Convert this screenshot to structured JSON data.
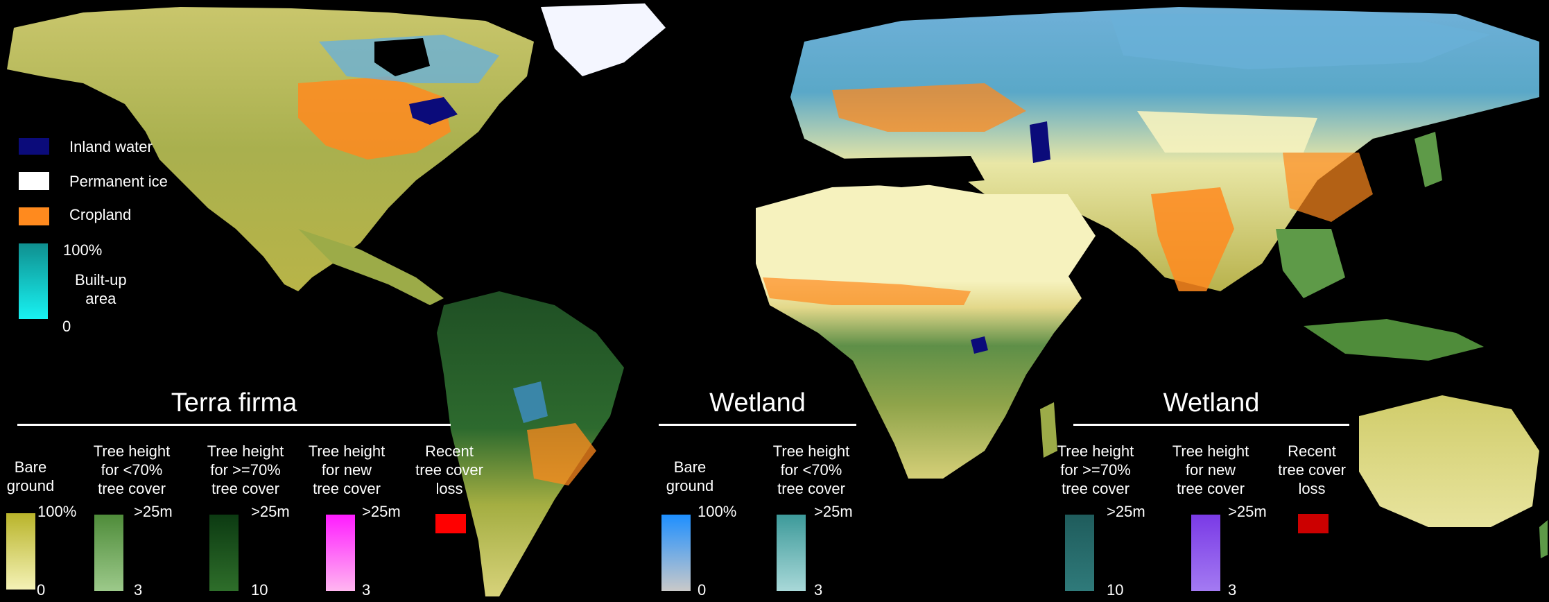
{
  "legend_top": {
    "inland_water": {
      "label": "Inland water",
      "color": "#0b0b7a"
    },
    "permanent_ice": {
      "label": "Permanent ice",
      "color": "#ffffff"
    },
    "cropland": {
      "label": "Cropland",
      "color": "#ff8a1e"
    },
    "built_up": {
      "label": "Built-up\narea",
      "max": "100%",
      "min": "0",
      "color_top": "#0f8f8f",
      "color_bottom": "#18f2f2"
    }
  },
  "terra_firma": {
    "title": "Terra firma",
    "columns": [
      {
        "head": "Bare\nground",
        "max": "100%",
        "min": "0",
        "top": "#b9b42a",
        "bottom": "#f4f2b6"
      },
      {
        "head": "Tree height\nfor <70%\ntree cover",
        "max": ">25m",
        "min": "3",
        "top": "#4f8c3a",
        "bottom": "#9cc98a"
      },
      {
        "head": "Tree height\nfor >=70%\ntree cover",
        "max": ">25m",
        "min": "10",
        "top": "#0c3a12",
        "bottom": "#2e6e2a"
      },
      {
        "head": "Tree height\nfor new\ntree cover",
        "max": ">25m",
        "min": "3",
        "top": "#ff1cff",
        "bottom": "#ffb6f0"
      },
      {
        "head": "Recent\ntree cover\nloss",
        "swatch": "#ff0000"
      }
    ]
  },
  "wetland_left": {
    "title": "Wetland",
    "columns": [
      {
        "head": "Bare\nground",
        "max": "100%",
        "min": "0",
        "top": "#1e8fff",
        "bottom": "#c9c9c9"
      },
      {
        "head": "Tree height\nfor <70%\ntree cover",
        "max": ">25m",
        "min": "3",
        "top": "#3d9a9a",
        "bottom": "#a8d8d8"
      }
    ]
  },
  "wetland_right": {
    "title": "Wetland",
    "columns": [
      {
        "head": "Tree height\nfor >=70%\ntree cover",
        "max": ">25m",
        "min": "10",
        "top": "#1f5c5c",
        "bottom": "#2f7a7a"
      },
      {
        "head": "Tree height\nfor new\ntree cover",
        "max": ">25m",
        "min": "3",
        "top": "#7a3ae6",
        "bottom": "#a37af2"
      },
      {
        "head": "Recent\ntree cover\nloss",
        "swatch": "#cc0000"
      }
    ]
  },
  "map_colors": {
    "ocean": "#000000",
    "bare_desert": "#f6f2be",
    "grassland": "#c8c26a",
    "forest_dense": "#1e4f22",
    "forest_open": "#5e9a48",
    "boreal": "#6ab0d8",
    "wetland": "#3f8fc8",
    "cropland": "#ff8a1e",
    "ice": "#f4f6ff",
    "inland_water": "#0b0b7a"
  }
}
